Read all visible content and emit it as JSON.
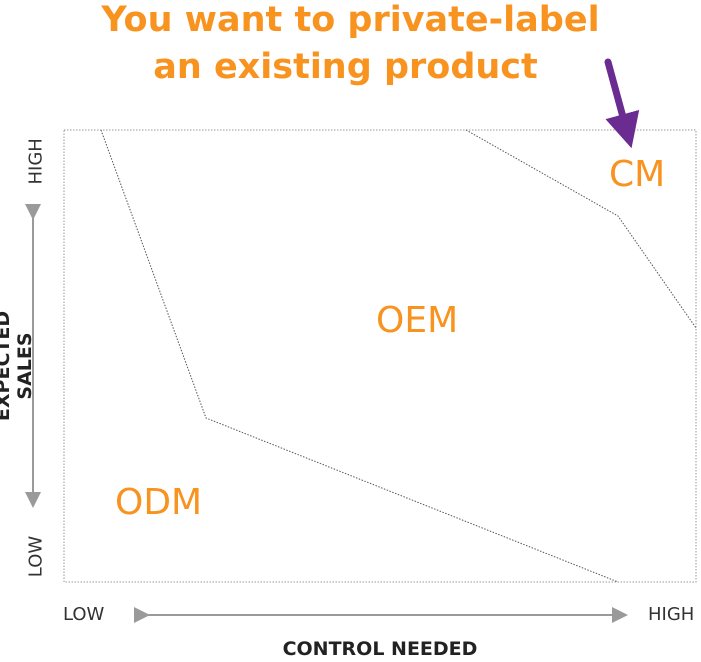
{
  "title": {
    "line1": "You want to private-label",
    "line2": "an existing product"
  },
  "regions": {
    "cm": "CM",
    "oem": "OEM",
    "odm": "ODM"
  },
  "y_axis": {
    "title": "EXPECTED SALES",
    "high": "HIGH",
    "low": "LOW"
  },
  "x_axis": {
    "title": "CONTROL NEEDED",
    "low": "LOW",
    "high": "HIGH"
  },
  "colors": {
    "accent": "#f7931e",
    "arrow": "#6a2c91",
    "axis_arrow": "#9a9a9a"
  }
}
